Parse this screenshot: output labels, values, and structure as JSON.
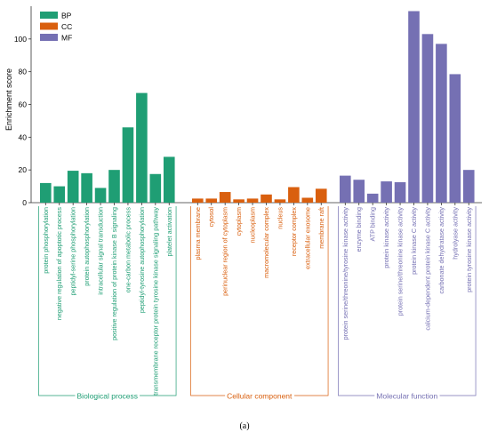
{
  "chart_data": {
    "type": "bar",
    "ylabel": "Enrichment score",
    "ylim": [
      0,
      120
    ],
    "yticks": [
      0,
      20,
      40,
      60,
      80,
      100
    ],
    "legend_position": "top-left",
    "series": [
      {
        "name": "BP",
        "color": "#1f9e74",
        "group_label": "Biological process",
        "categories": [
          "protein phosphorylation",
          "negative regulation of apoptotic process",
          "peptidyl-serine phosphorylation",
          "protein autophosphorylation",
          "intracellular signal transduction",
          "positive regulation of protein kinase B signaling",
          "one-carbon metabolic process",
          "peptidyl-tyrosine autophosphorylation",
          "transmembrane receptor protein tyrosine kinase signaling pathway",
          "platelet activation"
        ],
        "values": [
          12,
          10,
          19.5,
          18,
          9,
          20,
          46,
          67,
          17.5,
          28
        ]
      },
      {
        "name": "CC",
        "color": "#d95f0e",
        "group_label": "Cellular component",
        "categories": [
          "plasma membrane",
          "cytosol",
          "perinuclear region of cytoplasm",
          "cytoplasm",
          "nucleoplasm",
          "macromolecular complex",
          "nucleus",
          "receptor complex",
          "extracellular exosome",
          "membrane raft"
        ],
        "values": [
          2.5,
          2.5,
          6.5,
          2,
          2.5,
          5,
          2,
          9.5,
          3,
          8.5
        ]
      },
      {
        "name": "MF",
        "color": "#7570b3",
        "group_label": "Molecular function",
        "categories": [
          "protein serine/threonine/tyrosine kinase activity",
          "enzyme binding",
          "ATP binding",
          "protein kinase activity",
          "protein serine/threonine kinase activity",
          "protein kinase C activity",
          "calcium-dependent protein kinase C activity",
          "carbonate dehydratase activity",
          "hydrolyase activity",
          "protein tyrosine kinase activity"
        ],
        "values": [
          16.5,
          14,
          5.5,
          13,
          12.5,
          117,
          103,
          97,
          78.5,
          20
        ]
      }
    ]
  },
  "caption": "(a)"
}
